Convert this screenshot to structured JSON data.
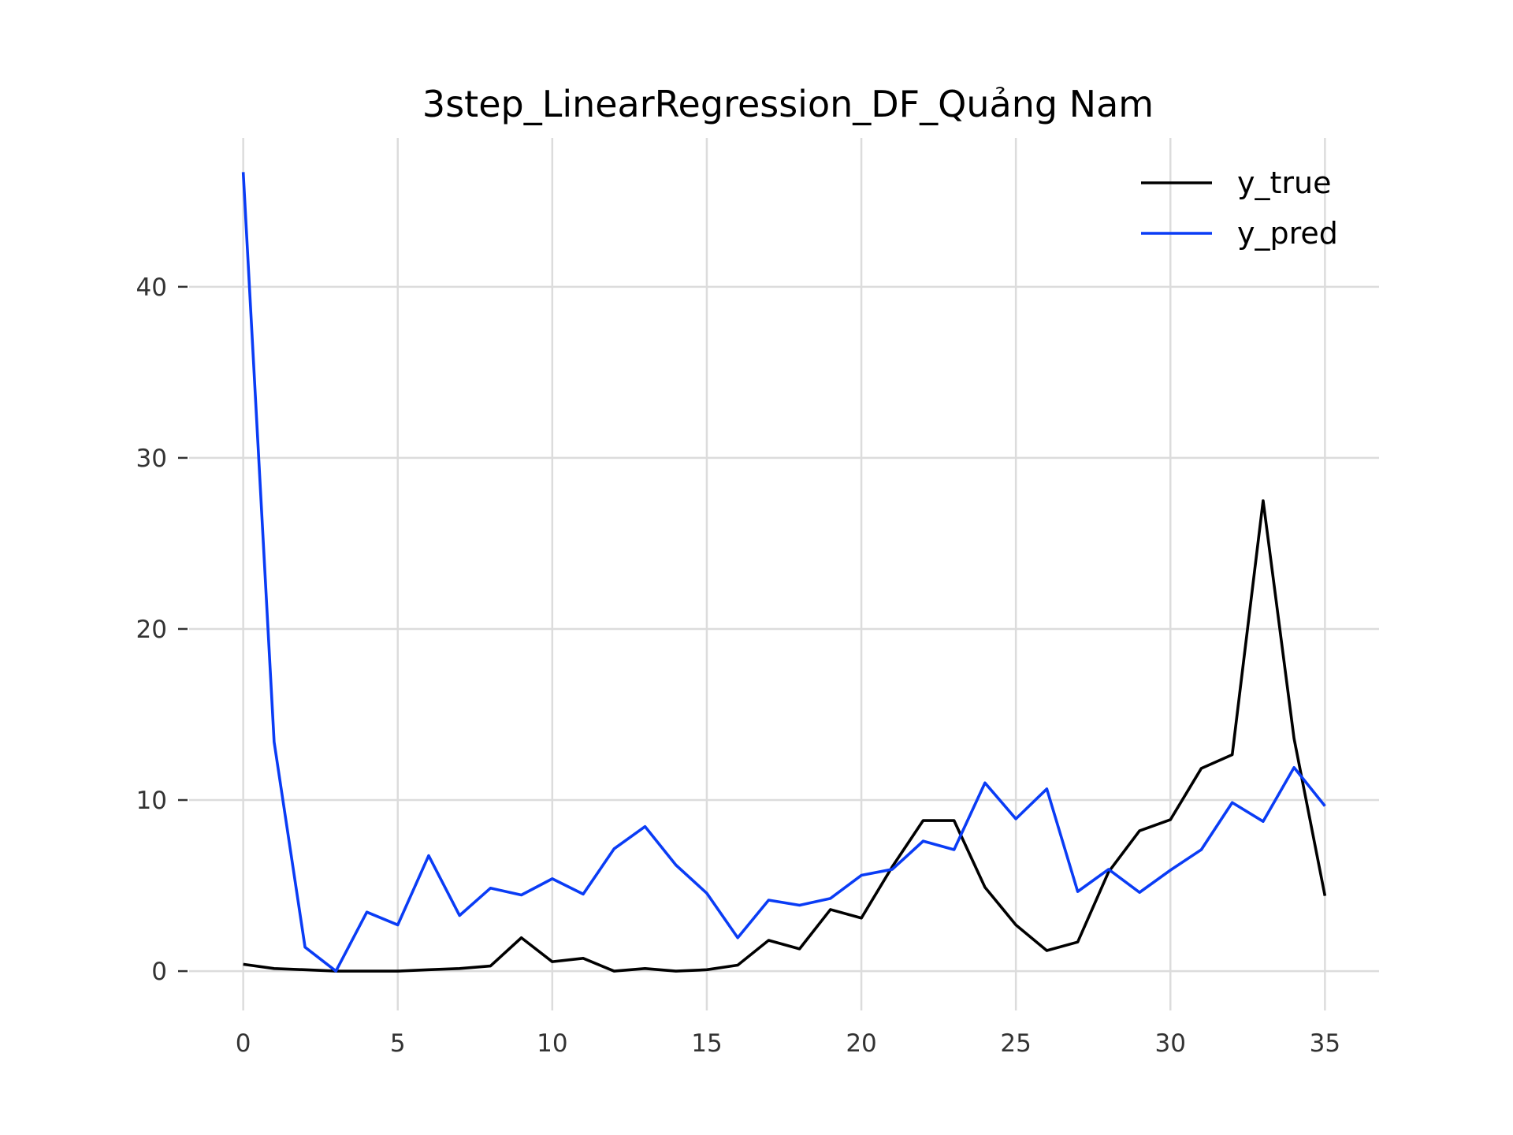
{
  "chart_data": {
    "type": "line",
    "title": "3step_LinearRegression_DF_Quảng Nam",
    "xlabel": "",
    "ylabel": "",
    "xlim": [
      -1.75,
      36.75
    ],
    "ylim": [
      -2.3,
      48.7
    ],
    "x_ticks": [
      0,
      5,
      10,
      15,
      20,
      25,
      30,
      35
    ],
    "y_ticks": [
      0,
      10,
      20,
      30,
      40
    ],
    "grid": true,
    "legend": "top-right",
    "x": [
      0,
      1,
      2,
      3,
      4,
      5,
      6,
      7,
      8,
      9,
      10,
      11,
      12,
      13,
      14,
      15,
      16,
      17,
      18,
      19,
      20,
      21,
      22,
      23,
      24,
      25,
      26,
      27,
      28,
      29,
      30,
      31,
      32,
      33,
      34,
      35
    ],
    "series": [
      {
        "name": "y_true",
        "color": "#000000",
        "values": [
          0.4,
          0.15,
          0.08,
          0.0,
          0.0,
          0.0,
          0.08,
          0.15,
          0.3,
          1.95,
          0.55,
          0.75,
          0.0,
          0.15,
          0.0,
          0.08,
          0.35,
          1.8,
          1.3,
          3.6,
          3.1,
          6.1,
          8.8,
          8.8,
          4.9,
          2.7,
          1.2,
          1.7,
          5.8,
          8.2,
          8.85,
          11.85,
          12.65,
          27.5,
          13.6,
          4.4
        ]
      },
      {
        "name": "y_pred",
        "color": "#0a3cf5",
        "values": [
          46.7,
          13.4,
          1.4,
          0.0,
          3.45,
          2.7,
          6.75,
          3.25,
          4.85,
          4.45,
          5.4,
          4.5,
          7.15,
          8.45,
          6.2,
          4.55,
          1.95,
          4.15,
          3.85,
          4.25,
          5.6,
          5.95,
          7.6,
          7.1,
          11.0,
          8.9,
          10.65,
          4.65,
          5.95,
          4.6,
          5.9,
          7.1,
          9.85,
          8.75,
          11.9,
          9.65
        ]
      }
    ]
  }
}
